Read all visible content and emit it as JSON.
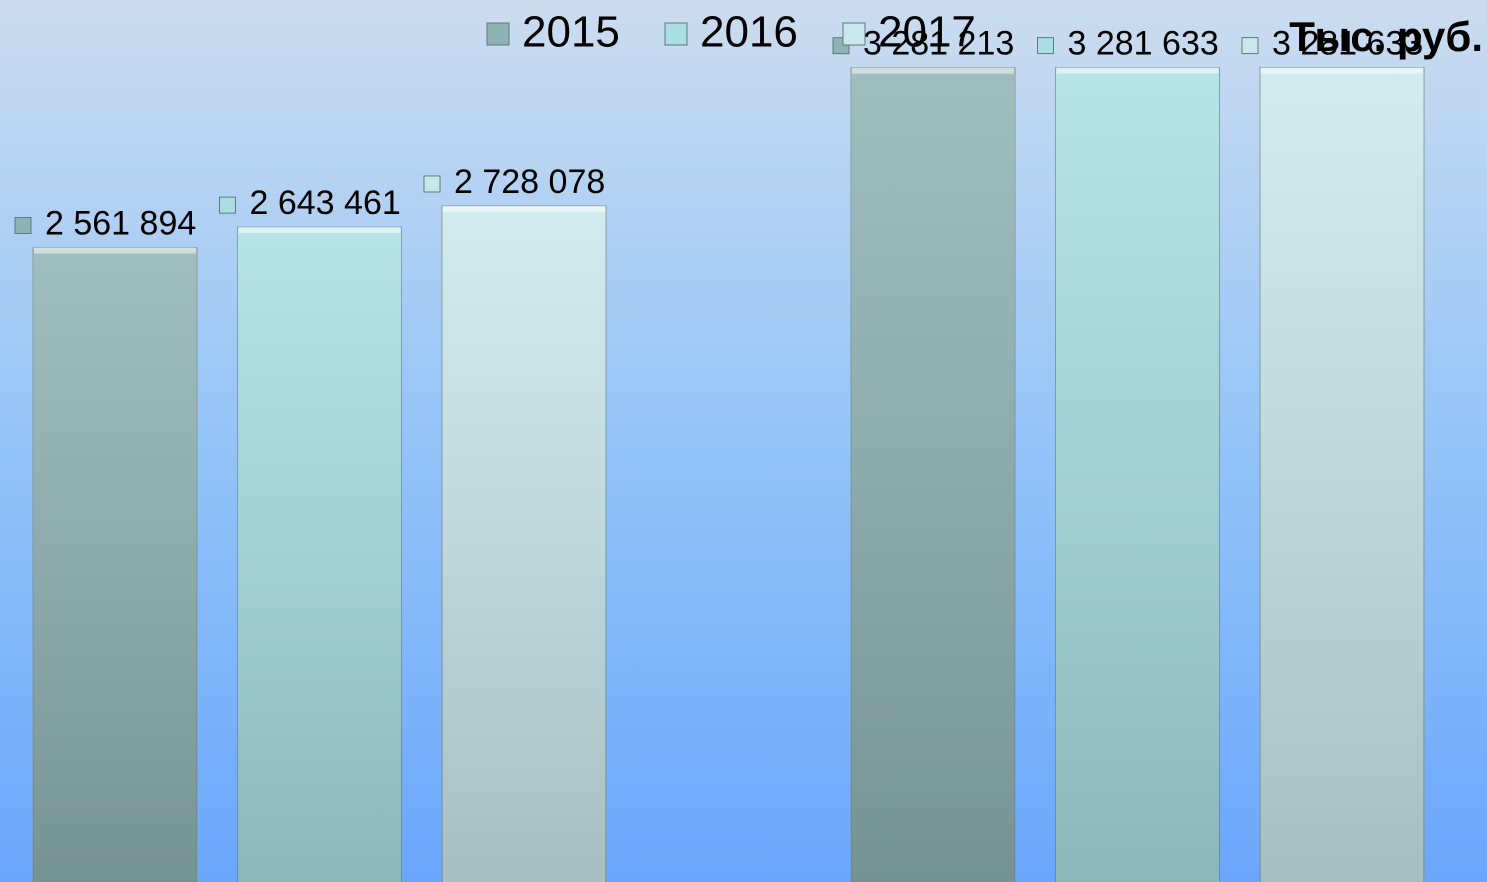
{
  "chart_data": {
    "type": "bar",
    "annotation": "Тыс. руб.",
    "categories": [
      null,
      null
    ],
    "series": [
      {
        "name": "2015",
        "color": "#8fb2b4",
        "values": [
          2561894,
          3281213
        ],
        "value_labels": [
          "2 561 894",
          "3 281 213"
        ]
      },
      {
        "name": "2016",
        "color": "#a9dfe3",
        "values": [
          2643461,
          3281633
        ],
        "value_labels": [
          "2 643 461",
          "3 281 633"
        ]
      },
      {
        "name": "2017",
        "color": "#c9e8ec",
        "values": [
          2728078,
          3281633
        ],
        "value_labels": [
          "2 728 078",
          "3 281 633"
        ]
      }
    ]
  }
}
